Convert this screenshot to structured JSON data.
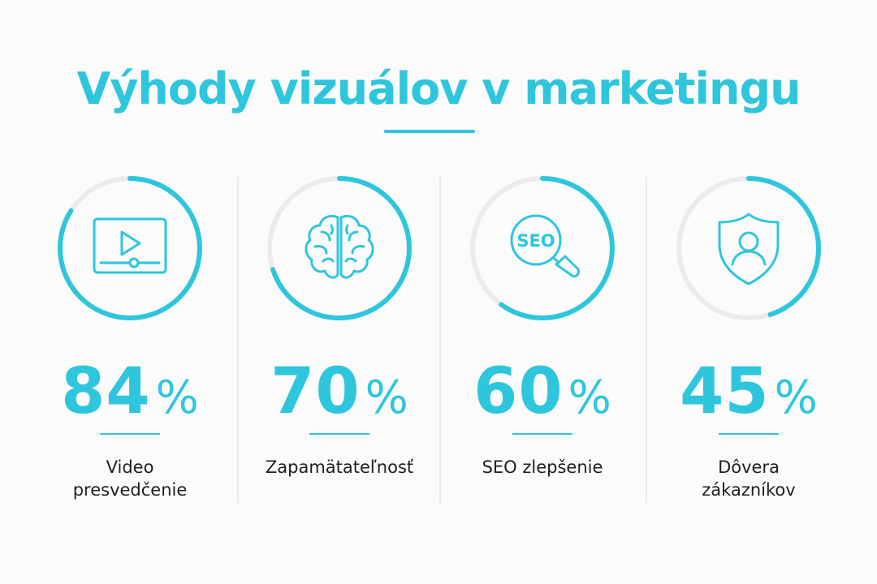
{
  "title": "Výhody vizuálov v marketingu",
  "accent_color": "#2ec6dc",
  "track_color": "#ebebeb",
  "stats": [
    {
      "value": "84",
      "unit": "%",
      "fraction": 0.84,
      "label_lines": [
        "Video",
        "presvedčenie"
      ],
      "icon": "video-play-icon"
    },
    {
      "value": "70",
      "unit": "%",
      "fraction": 0.7,
      "label_lines": [
        "Zapamätateľnosť"
      ],
      "icon": "brain-icon"
    },
    {
      "value": "60",
      "unit": "%",
      "fraction": 0.6,
      "label_lines": [
        "SEO zlepšenie"
      ],
      "icon": "seo-magnifier-icon",
      "icon_text": "SEO"
    },
    {
      "value": "45",
      "unit": "%",
      "fraction": 0.45,
      "label_lines": [
        "Dôvera",
        "zákazníkov"
      ],
      "icon": "shield-user-icon"
    }
  ]
}
